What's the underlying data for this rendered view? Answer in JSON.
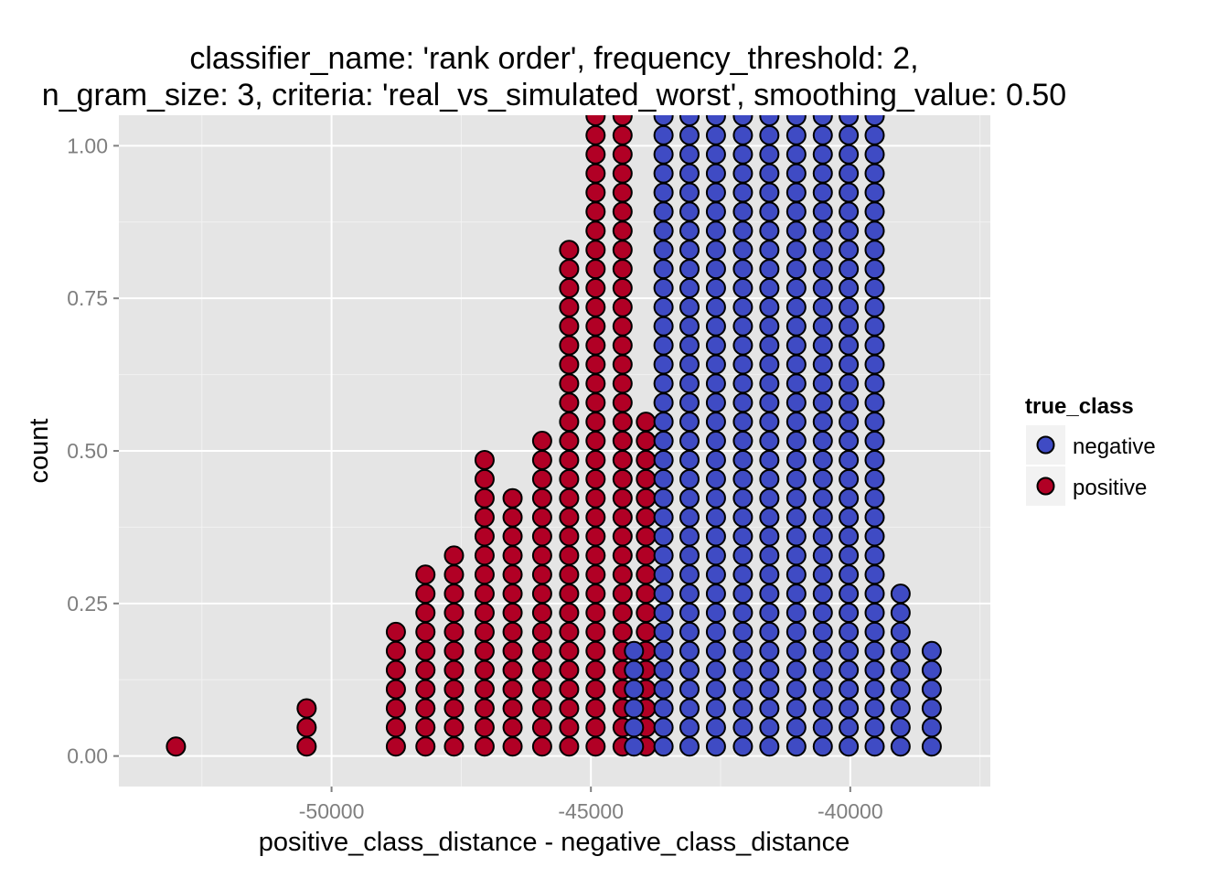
{
  "chart_data": {
    "type": "scatter",
    "subtype": "dotplot",
    "title_lines": [
      "classifier_name: 'rank order', frequency_threshold: 2,",
      "n_gram_size: 3, criteria: 'real_vs_simulated_worst', smoothing_value: 0.50"
    ],
    "xlabel": "positive_class_distance - negative_class_distance",
    "ylabel": "count",
    "xlim": [
      -54100,
      -37300
    ],
    "ylim": [
      -0.05,
      1.05
    ],
    "x_ticks": [
      -50000,
      -45000,
      -40000
    ],
    "x_tick_labels": [
      "-50000",
      "-45000",
      "-40000"
    ],
    "y_ticks": [
      0,
      0.25,
      0.5,
      0.75,
      1
    ],
    "y_tick_labels": [
      "0.00",
      "0.25",
      "0.50",
      "0.75",
      "1.00"
    ],
    "stack_step": 0.0313,
    "stack_base": 0.0156,
    "grid": true,
    "background": "#e5e5e5",
    "legend": {
      "title": "true_class",
      "position": "right",
      "entries": [
        {
          "label": "negative",
          "color": "#3f4bc4"
        },
        {
          "label": "positive",
          "color": "#b10025"
        }
      ]
    },
    "series": [
      {
        "name": "positive",
        "color": "#b10025",
        "stacks": [
          {
            "x": -53000,
            "n": 1
          },
          {
            "x": -50480,
            "n": 3
          },
          {
            "x": -48760,
            "n": 7
          },
          {
            "x": -48190,
            "n": 10
          },
          {
            "x": -47640,
            "n": 11
          },
          {
            "x": -47050,
            "n": 16
          },
          {
            "x": -46510,
            "n": 14
          },
          {
            "x": -45940,
            "n": 17
          },
          {
            "x": -45420,
            "n": 27
          },
          {
            "x": -44910,
            "n": 34
          },
          {
            "x": -44390,
            "n": 34
          },
          {
            "x": -43940,
            "n": 18
          }
        ]
      },
      {
        "name": "negative",
        "color": "#3f4bc4",
        "stacks": [
          {
            "x": -44170,
            "n": 6
          },
          {
            "x": -43600,
            "n": 34
          },
          {
            "x": -43100,
            "n": 34
          },
          {
            "x": -42590,
            "n": 34
          },
          {
            "x": -42070,
            "n": 34
          },
          {
            "x": -41560,
            "n": 34
          },
          {
            "x": -41040,
            "n": 34
          },
          {
            "x": -40530,
            "n": 34
          },
          {
            "x": -40030,
            "n": 34
          },
          {
            "x": -39530,
            "n": 34
          },
          {
            "x": -39030,
            "n": 9
          },
          {
            "x": -38430,
            "n": 6
          }
        ]
      }
    ]
  }
}
